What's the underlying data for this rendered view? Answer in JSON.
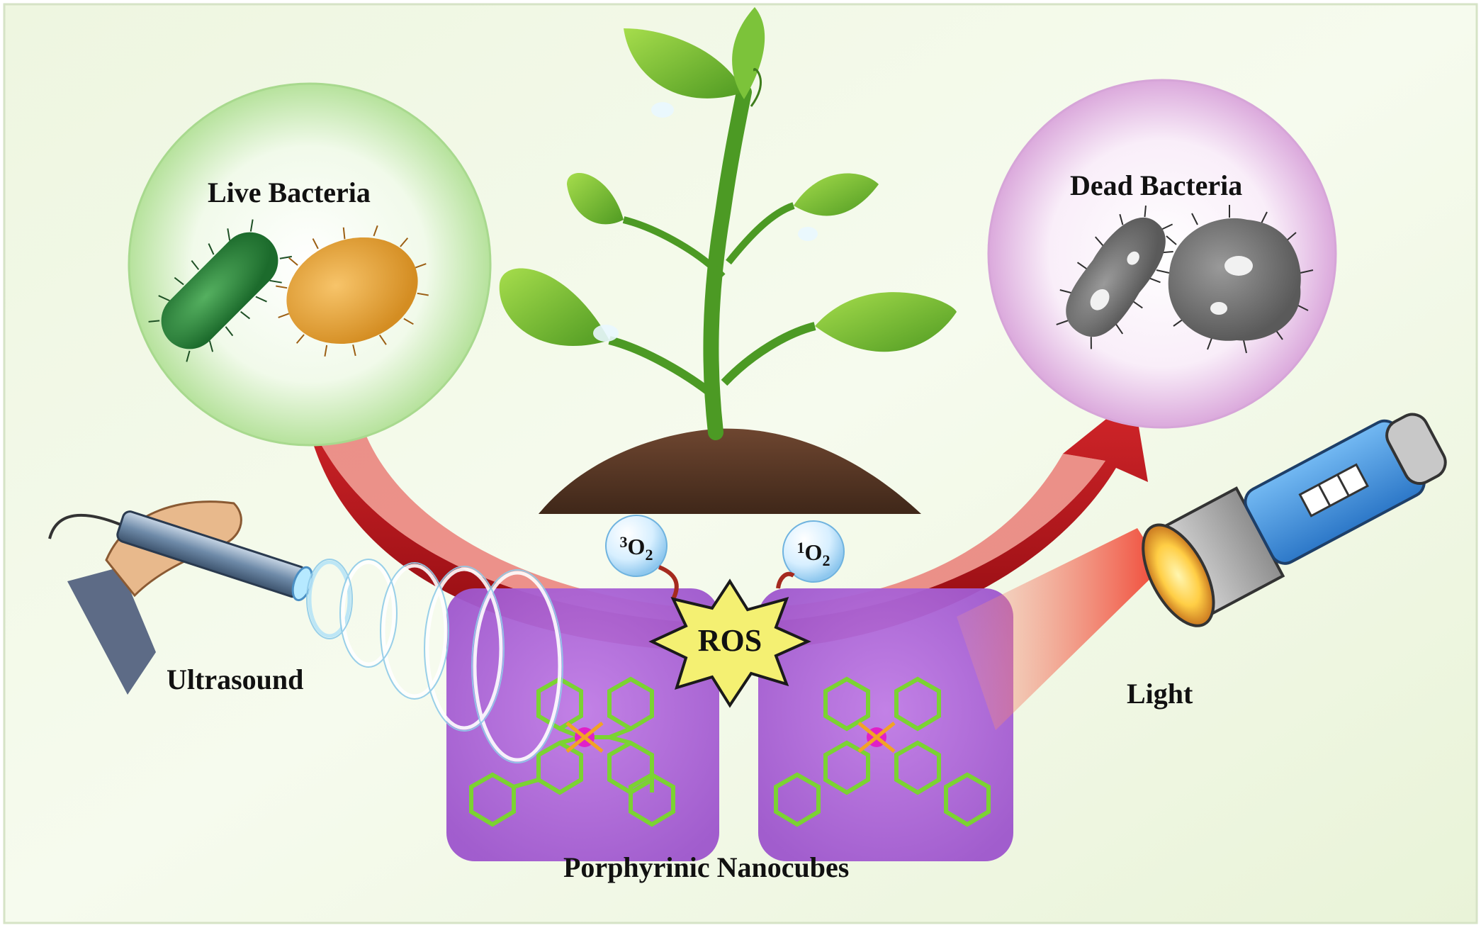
{
  "labels": {
    "live_bacteria": "Live Bacteria",
    "dead_bacteria": "Dead Bacteria",
    "ultrasound": "Ultrasound",
    "light": "Light",
    "nanocubes": "Porphyrinic Nanocubes",
    "ros": "ROS"
  },
  "molecules": {
    "triplet": {
      "sup": "3",
      "base": "O",
      "sub": "2"
    },
    "singlet": {
      "sup": "1",
      "base": "O",
      "sub": "2"
    }
  },
  "colors": {
    "arrow": "#b51016",
    "leaf": "#6dbb2c",
    "soil": "#5a3826",
    "cube": "#b06ad8",
    "ros_burst": "#f4f072",
    "flashlight_body": "#4a9de0",
    "light_beam": "#f05a3a",
    "live_bubble": "#c9ecb4",
    "dead_bubble": "#e6bde6"
  },
  "icons": {
    "plant": "seedling-icon",
    "live": "live-bacteria-icon",
    "dead": "dead-bacteria-icon",
    "probe": "ultrasound-probe-icon",
    "flashlight": "flashlight-icon"
  }
}
